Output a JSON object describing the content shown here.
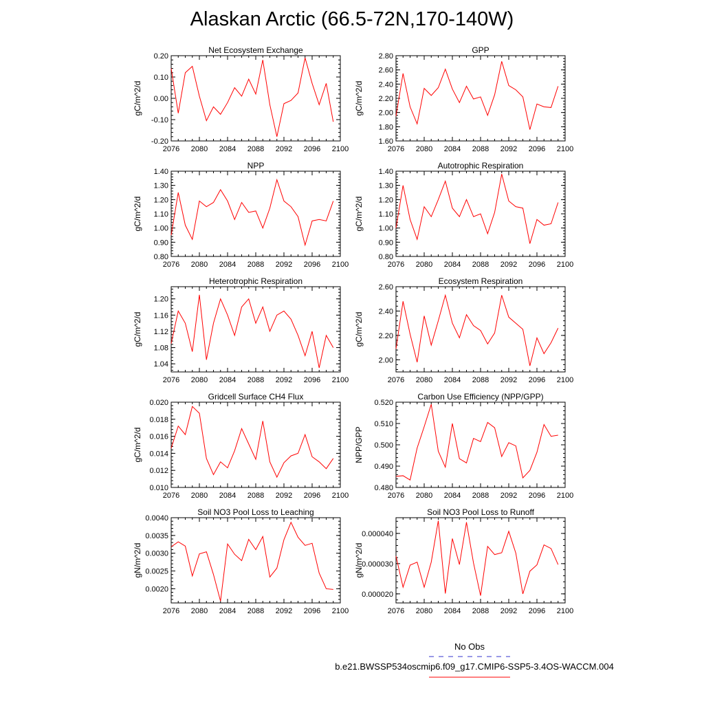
{
  "title": "Alaskan Arctic (66.5-72N,170-140W)",
  "legend": {
    "obs_label": "No Obs",
    "model_label": "b.e21.BWSSP534oscmip6.f09_g17.CMIP6-SSP5-3.4OS-WACCM.004",
    "obs_color": "#3333cc",
    "model_color": "#ff0000"
  },
  "colors": {
    "series": "#ff0000",
    "axis": "#000000"
  },
  "chart_data": [
    {
      "type": "line",
      "title": "Net Ecosystem Exchange",
      "ylabel": "gC/m^2/d",
      "xlim": [
        2076,
        2100
      ],
      "xticks": [
        "2076",
        "2080",
        "2084",
        "2088",
        "2092",
        "2096",
        "2100"
      ],
      "ylim": [
        -0.2,
        0.2
      ],
      "yticks": [
        "-0.20",
        "-0.10",
        "0.00",
        "0.10",
        "0.20"
      ],
      "x": [
        2076,
        2077,
        2078,
        2079,
        2080,
        2081,
        2082,
        2083,
        2084,
        2085,
        2086,
        2087,
        2088,
        2089,
        2090,
        2091,
        2092,
        2093,
        2094,
        2095,
        2096,
        2097,
        2098,
        2099
      ],
      "values": [
        0.14,
        -0.07,
        0.12,
        0.15,
        0.01,
        -0.105,
        -0.04,
        -0.075,
        -0.02,
        0.05,
        0.01,
        0.09,
        0.02,
        0.18,
        -0.03,
        -0.18,
        -0.025,
        -0.01,
        0.025,
        0.19,
        0.07,
        -0.03,
        0.07,
        -0.11
      ]
    },
    {
      "type": "line",
      "title": "GPP",
      "ylabel": "gC/m^2/d",
      "xlim": [
        2076,
        2100
      ],
      "xticks": [
        "2076",
        "2080",
        "2084",
        "2088",
        "2092",
        "2096",
        "2100"
      ],
      "ylim": [
        1.6,
        2.8
      ],
      "yticks": [
        "1.60",
        "1.80",
        "2.00",
        "2.20",
        "2.40",
        "2.60",
        "2.80"
      ],
      "x": [
        2076,
        2077,
        2078,
        2079,
        2080,
        2081,
        2082,
        2083,
        2084,
        2085,
        2086,
        2087,
        2088,
        2089,
        2090,
        2091,
        2092,
        2093,
        2094,
        2095,
        2096,
        2097,
        2098,
        2099
      ],
      "values": [
        1.95,
        2.55,
        2.08,
        1.84,
        2.34,
        2.24,
        2.35,
        2.61,
        2.33,
        2.14,
        2.37,
        2.19,
        2.22,
        1.96,
        2.25,
        2.72,
        2.38,
        2.32,
        2.22,
        1.76,
        2.12,
        2.08,
        2.07,
        2.37
      ]
    },
    {
      "type": "line",
      "title": "NPP",
      "ylabel": "gC/m^2/d",
      "xlim": [
        2076,
        2100
      ],
      "xticks": [
        "2076",
        "2080",
        "2084",
        "2088",
        "2092",
        "2096",
        "2100"
      ],
      "ylim": [
        0.8,
        1.4
      ],
      "yticks": [
        "0.80",
        "0.90",
        "1.00",
        "1.10",
        "1.20",
        "1.30",
        "1.40"
      ],
      "x": [
        2076,
        2077,
        2078,
        2079,
        2080,
        2081,
        2082,
        2083,
        2084,
        2085,
        2086,
        2087,
        2088,
        2089,
        2090,
        2091,
        2092,
        2093,
        2094,
        2095,
        2096,
        2097,
        2098,
        2099
      ],
      "values": [
        0.95,
        1.25,
        1.02,
        0.92,
        1.19,
        1.15,
        1.18,
        1.27,
        1.19,
        1.06,
        1.18,
        1.11,
        1.12,
        1.0,
        1.14,
        1.34,
        1.19,
        1.15,
        1.08,
        0.88,
        1.05,
        1.06,
        1.05,
        1.19
      ]
    },
    {
      "type": "line",
      "title": "Autotrophic Respiration",
      "ylabel": "gC/m^2/d",
      "xlim": [
        2076,
        2100
      ],
      "xticks": [
        "2076",
        "2080",
        "2084",
        "2088",
        "2092",
        "2096",
        "2100"
      ],
      "ylim": [
        0.8,
        1.4
      ],
      "yticks": [
        "0.80",
        "0.90",
        "1.00",
        "1.10",
        "1.20",
        "1.30",
        "1.40"
      ],
      "x": [
        2076,
        2077,
        2078,
        2079,
        2080,
        2081,
        2082,
        2083,
        2084,
        2085,
        2086,
        2087,
        2088,
        2089,
        2090,
        2091,
        2092,
        2093,
        2094,
        2095,
        2096,
        2097,
        2098,
        2099
      ],
      "values": [
        1.0,
        1.3,
        1.06,
        0.92,
        1.15,
        1.08,
        1.2,
        1.33,
        1.14,
        1.08,
        1.2,
        1.08,
        1.1,
        0.96,
        1.11,
        1.38,
        1.19,
        1.15,
        1.14,
        0.89,
        1.06,
        1.02,
        1.03,
        1.18
      ]
    },
    {
      "type": "line",
      "title": "Heterotrophic Respiration",
      "ylabel": "gC/m^2/d",
      "xlim": [
        2076,
        2100
      ],
      "xticks": [
        "2076",
        "2080",
        "2084",
        "2088",
        "2092",
        "2096",
        "2100"
      ],
      "ylim": [
        1.02,
        1.23
      ],
      "yticks": [
        "1.04",
        "1.08",
        "1.12",
        "1.16",
        "1.20"
      ],
      "x": [
        2076,
        2077,
        2078,
        2079,
        2080,
        2081,
        2082,
        2083,
        2084,
        2085,
        2086,
        2087,
        2088,
        2089,
        2090,
        2091,
        2092,
        2093,
        2094,
        2095,
        2096,
        2097,
        2098,
        2099
      ],
      "values": [
        1.09,
        1.17,
        1.14,
        1.07,
        1.21,
        1.05,
        1.14,
        1.2,
        1.16,
        1.11,
        1.18,
        1.2,
        1.14,
        1.18,
        1.12,
        1.16,
        1.17,
        1.15,
        1.11,
        1.06,
        1.12,
        1.03,
        1.11,
        1.08
      ]
    },
    {
      "type": "line",
      "title": "Ecosystem Respiration",
      "ylabel": "gC/m^2/d",
      "xlim": [
        2076,
        2100
      ],
      "xticks": [
        "2076",
        "2080",
        "2084",
        "2088",
        "2092",
        "2096",
        "2100"
      ],
      "ylim": [
        1.9,
        2.6
      ],
      "yticks": [
        "2.00",
        "2.20",
        "2.40",
        "2.60"
      ],
      "x": [
        2076,
        2077,
        2078,
        2079,
        2080,
        2081,
        2082,
        2083,
        2084,
        2085,
        2086,
        2087,
        2088,
        2089,
        2090,
        2091,
        2092,
        2093,
        2094,
        2095,
        2096,
        2097,
        2098,
        2099
      ],
      "values": [
        2.09,
        2.48,
        2.21,
        1.98,
        2.36,
        2.12,
        2.32,
        2.53,
        2.3,
        2.18,
        2.37,
        2.28,
        2.24,
        2.13,
        2.22,
        2.53,
        2.35,
        2.3,
        2.25,
        1.95,
        2.18,
        2.05,
        2.14,
        2.26
      ]
    },
    {
      "type": "line",
      "title": "Gridcell Surface CH4 Flux",
      "ylabel": "gC/m^2/d",
      "xlim": [
        2076,
        2100
      ],
      "xticks": [
        "2076",
        "2080",
        "2084",
        "2088",
        "2092",
        "2096",
        "2100"
      ],
      "ylim": [
        0.01,
        0.02
      ],
      "yticks": [
        "0.010",
        "0.012",
        "0.014",
        "0.016",
        "0.018",
        "0.020"
      ],
      "x": [
        2076,
        2077,
        2078,
        2079,
        2080,
        2081,
        2082,
        2083,
        2084,
        2085,
        2086,
        2087,
        2088,
        2089,
        2090,
        2091,
        2092,
        2093,
        2094,
        2095,
        2096,
        2097,
        2098,
        2099
      ],
      "values": [
        0.0146,
        0.0172,
        0.0162,
        0.0195,
        0.0187,
        0.0134,
        0.0115,
        0.013,
        0.0123,
        0.0143,
        0.0169,
        0.0151,
        0.0133,
        0.0178,
        0.013,
        0.0112,
        0.0129,
        0.0137,
        0.014,
        0.0162,
        0.0136,
        0.013,
        0.0122,
        0.0134
      ]
    },
    {
      "type": "line",
      "title": "Carbon Use Efficiency (NPP/GPP)",
      "ylabel": "NPP/GPP",
      "xlim": [
        2076,
        2100
      ],
      "xticks": [
        "2076",
        "2080",
        "2084",
        "2088",
        "2092",
        "2096",
        "2100"
      ],
      "ylim": [
        0.48,
        0.52
      ],
      "yticks": [
        "0.480",
        "0.490",
        "0.500",
        "0.510",
        "0.520"
      ],
      "x": [
        2076,
        2077,
        2078,
        2079,
        2080,
        2081,
        2082,
        2083,
        2084,
        2085,
        2086,
        2087,
        2088,
        2089,
        2090,
        2091,
        2092,
        2093,
        2094,
        2095,
        2096,
        2097,
        2098,
        2099
      ],
      "values": [
        0.4852,
        0.4855,
        0.4835,
        0.4985,
        0.5085,
        0.519,
        0.497,
        0.4895,
        0.51,
        0.4935,
        0.4915,
        0.503,
        0.5015,
        0.5105,
        0.508,
        0.4945,
        0.501,
        0.4995,
        0.4845,
        0.488,
        0.4965,
        0.5095,
        0.504,
        0.5045
      ]
    },
    {
      "type": "line",
      "title": "Soil NO3 Pool Loss to Leaching",
      "ylabel": "gN/m^2/d",
      "xlim": [
        2076,
        2100
      ],
      "xticks": [
        "2076",
        "2080",
        "2084",
        "2088",
        "2092",
        "2096",
        "2100"
      ],
      "ylim": [
        0.0016,
        0.004
      ],
      "yticks": [
        "0.0020",
        "0.0025",
        "0.0030",
        "0.0035",
        "0.0040"
      ],
      "x": [
        2076,
        2077,
        2078,
        2079,
        2080,
        2081,
        2082,
        2083,
        2084,
        2085,
        2086,
        2087,
        2088,
        2089,
        2090,
        2091,
        2092,
        2093,
        2094,
        2095,
        2096,
        2097,
        2098,
        2099
      ],
      "values": [
        0.00318,
        0.00332,
        0.0032,
        0.00236,
        0.00298,
        0.00304,
        0.0024,
        0.00165,
        0.00326,
        0.00297,
        0.00279,
        0.00339,
        0.0031,
        0.00347,
        0.00233,
        0.00258,
        0.00338,
        0.00387,
        0.00345,
        0.00322,
        0.00328,
        0.00244,
        0.002,
        0.00198
      ]
    },
    {
      "type": "line",
      "title": "Soil NO3 Pool Loss to Runoff",
      "ylabel": "gN/m^2/d",
      "xlim": [
        2076,
        2100
      ],
      "xticks": [
        "2076",
        "2080",
        "2084",
        "2088",
        "2092",
        "2096",
        "2100"
      ],
      "ylim": [
        1.7e-05,
        4.52e-05
      ],
      "yticks": [
        "0.000020",
        "0.000030",
        "0.000040"
      ],
      "x": [
        2076,
        2077,
        2078,
        2079,
        2080,
        2081,
        2082,
        2083,
        2084,
        2085,
        2086,
        2087,
        2088,
        2089,
        2090,
        2091,
        2092,
        2093,
        2094,
        2095,
        2096,
        2097,
        2098,
        2099
      ],
      "values": [
        3.25e-05,
        2.22e-05,
        2.95e-05,
        3.05e-05,
        2.22e-05,
        3.05e-05,
        4.42e-05,
        2.01e-05,
        3.83e-05,
        2.97e-05,
        4.37e-05,
        3.02e-05,
        1.94e-05,
        3.57e-05,
        3.3e-05,
        3.36e-05,
        4.07e-05,
        3.35e-05,
        2e-05,
        2.75e-05,
        2.96e-05,
        3.62e-05,
        3.5e-05,
        2.97e-05
      ]
    }
  ]
}
